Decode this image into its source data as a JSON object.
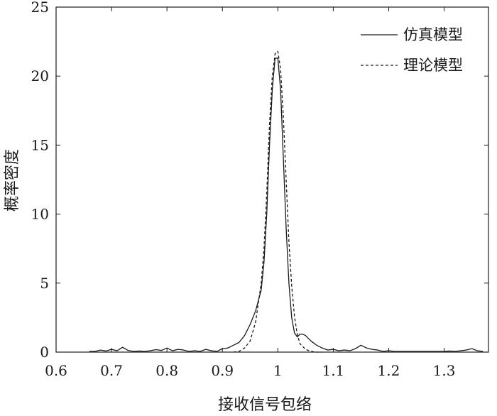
{
  "chart_data": {
    "type": "line",
    "title": "",
    "xlabel": "接收信号包络",
    "ylabel": "概率密度",
    "xlim": [
      0.6,
      1.38
    ],
    "ylim": [
      0,
      25
    ],
    "xticks": [
      0.6,
      0.7,
      0.8,
      0.9,
      1,
      1.1,
      1.2,
      1.3
    ],
    "xtick_labels": [
      "0.6",
      "0.7",
      "0.8",
      "0.9",
      "1",
      "1.1",
      "1.2",
      "1.3"
    ],
    "yticks": [
      0,
      5,
      10,
      15,
      20,
      25
    ],
    "ytick_labels": [
      "0",
      "5",
      "10",
      "15",
      "20",
      "25"
    ],
    "grid": false,
    "legend_position": "top-right",
    "series": [
      {
        "name": "仿真模型",
        "style": "solid",
        "x": [
          0.66,
          0.67,
          0.68,
          0.69,
          0.7,
          0.71,
          0.72,
          0.73,
          0.74,
          0.75,
          0.76,
          0.77,
          0.78,
          0.79,
          0.8,
          0.81,
          0.82,
          0.83,
          0.84,
          0.85,
          0.86,
          0.87,
          0.88,
          0.89,
          0.9,
          0.91,
          0.92,
          0.93,
          0.94,
          0.95,
          0.96,
          0.97,
          0.975,
          0.98,
          0.985,
          0.99,
          0.995,
          1.0,
          1.005,
          1.01,
          1.015,
          1.02,
          1.025,
          1.03,
          1.035,
          1.04,
          1.045,
          1.05,
          1.055,
          1.06,
          1.07,
          1.08,
          1.09,
          1.1,
          1.11,
          1.12,
          1.13,
          1.14,
          1.15,
          1.16,
          1.17,
          1.18,
          1.19,
          1.2,
          1.21,
          1.22,
          1.3,
          1.31,
          1.32,
          1.33,
          1.34,
          1.35,
          1.36,
          1.37
        ],
        "y": [
          0.05,
          0.05,
          0.15,
          0.08,
          0.2,
          0.1,
          0.35,
          0.12,
          0.05,
          0.08,
          0.05,
          0.1,
          0.18,
          0.12,
          0.3,
          0.1,
          0.2,
          0.15,
          0.05,
          0.1,
          0.05,
          0.2,
          0.1,
          0.05,
          0.25,
          0.3,
          0.5,
          0.7,
          1.2,
          2.0,
          3.0,
          4.5,
          6.5,
          10.0,
          15.0,
          19.0,
          21.3,
          21.3,
          19.0,
          14.0,
          9.0,
          5.0,
          2.5,
          1.4,
          1.1,
          1.3,
          1.3,
          1.2,
          1.0,
          0.8,
          0.5,
          0.3,
          0.15,
          0.2,
          0.1,
          0.15,
          0.1,
          0.25,
          0.5,
          0.3,
          0.2,
          0.15,
          0.05,
          0.1,
          0.05,
          0.05,
          0.05,
          0.08,
          0.05,
          0.1,
          0.15,
          0.25,
          0.1,
          0.05
        ]
      },
      {
        "name": "理论模型",
        "style": "dashed",
        "x": [
          0.92,
          0.93,
          0.94,
          0.95,
          0.96,
          0.97,
          0.975,
          0.98,
          0.985,
          0.99,
          0.995,
          1.0,
          1.005,
          1.01,
          1.015,
          1.02,
          1.025,
          1.03,
          1.035,
          1.04,
          1.05,
          1.06,
          1.07,
          1.08
        ],
        "y": [
          0.0,
          0.05,
          0.3,
          0.8,
          2.2,
          5.0,
          7.5,
          11.5,
          16.5,
          20.0,
          21.6,
          21.8,
          20.5,
          17.0,
          12.5,
          8.0,
          4.8,
          2.6,
          1.3,
          0.6,
          0.2,
          0.05,
          0.0,
          0.0
        ]
      }
    ]
  }
}
